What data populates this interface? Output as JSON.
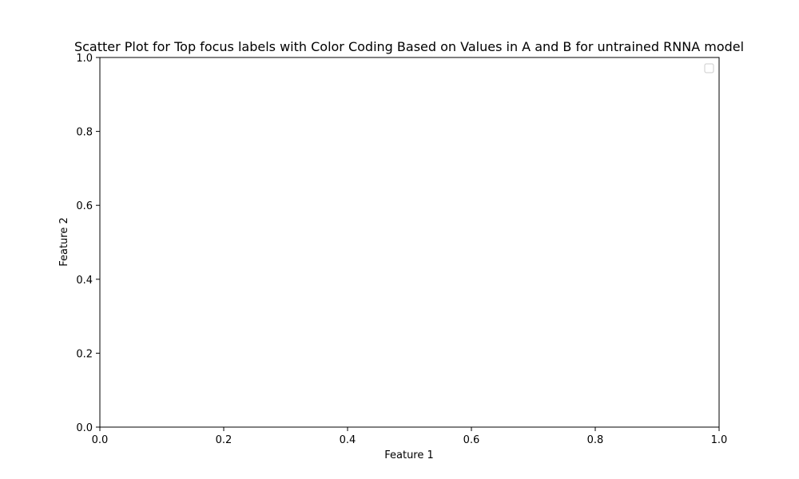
{
  "chart_data": {
    "type": "scatter",
    "title": "Scatter Plot for Top focus labels with Color Coding Based on Values in A and B for untrained RNNA model",
    "xlabel": "Feature 1",
    "ylabel": "Feature 2",
    "xlim": [
      0.0,
      1.0
    ],
    "ylim": [
      0.0,
      1.0
    ],
    "xticks": [
      "0.0",
      "0.2",
      "0.4",
      "0.6",
      "0.8",
      "1.0"
    ],
    "yticks": [
      "0.0",
      "0.2",
      "0.4",
      "0.6",
      "0.8",
      "1.0"
    ],
    "series": [],
    "grid": false,
    "legend": {
      "placement": "top-right",
      "entries": []
    }
  }
}
